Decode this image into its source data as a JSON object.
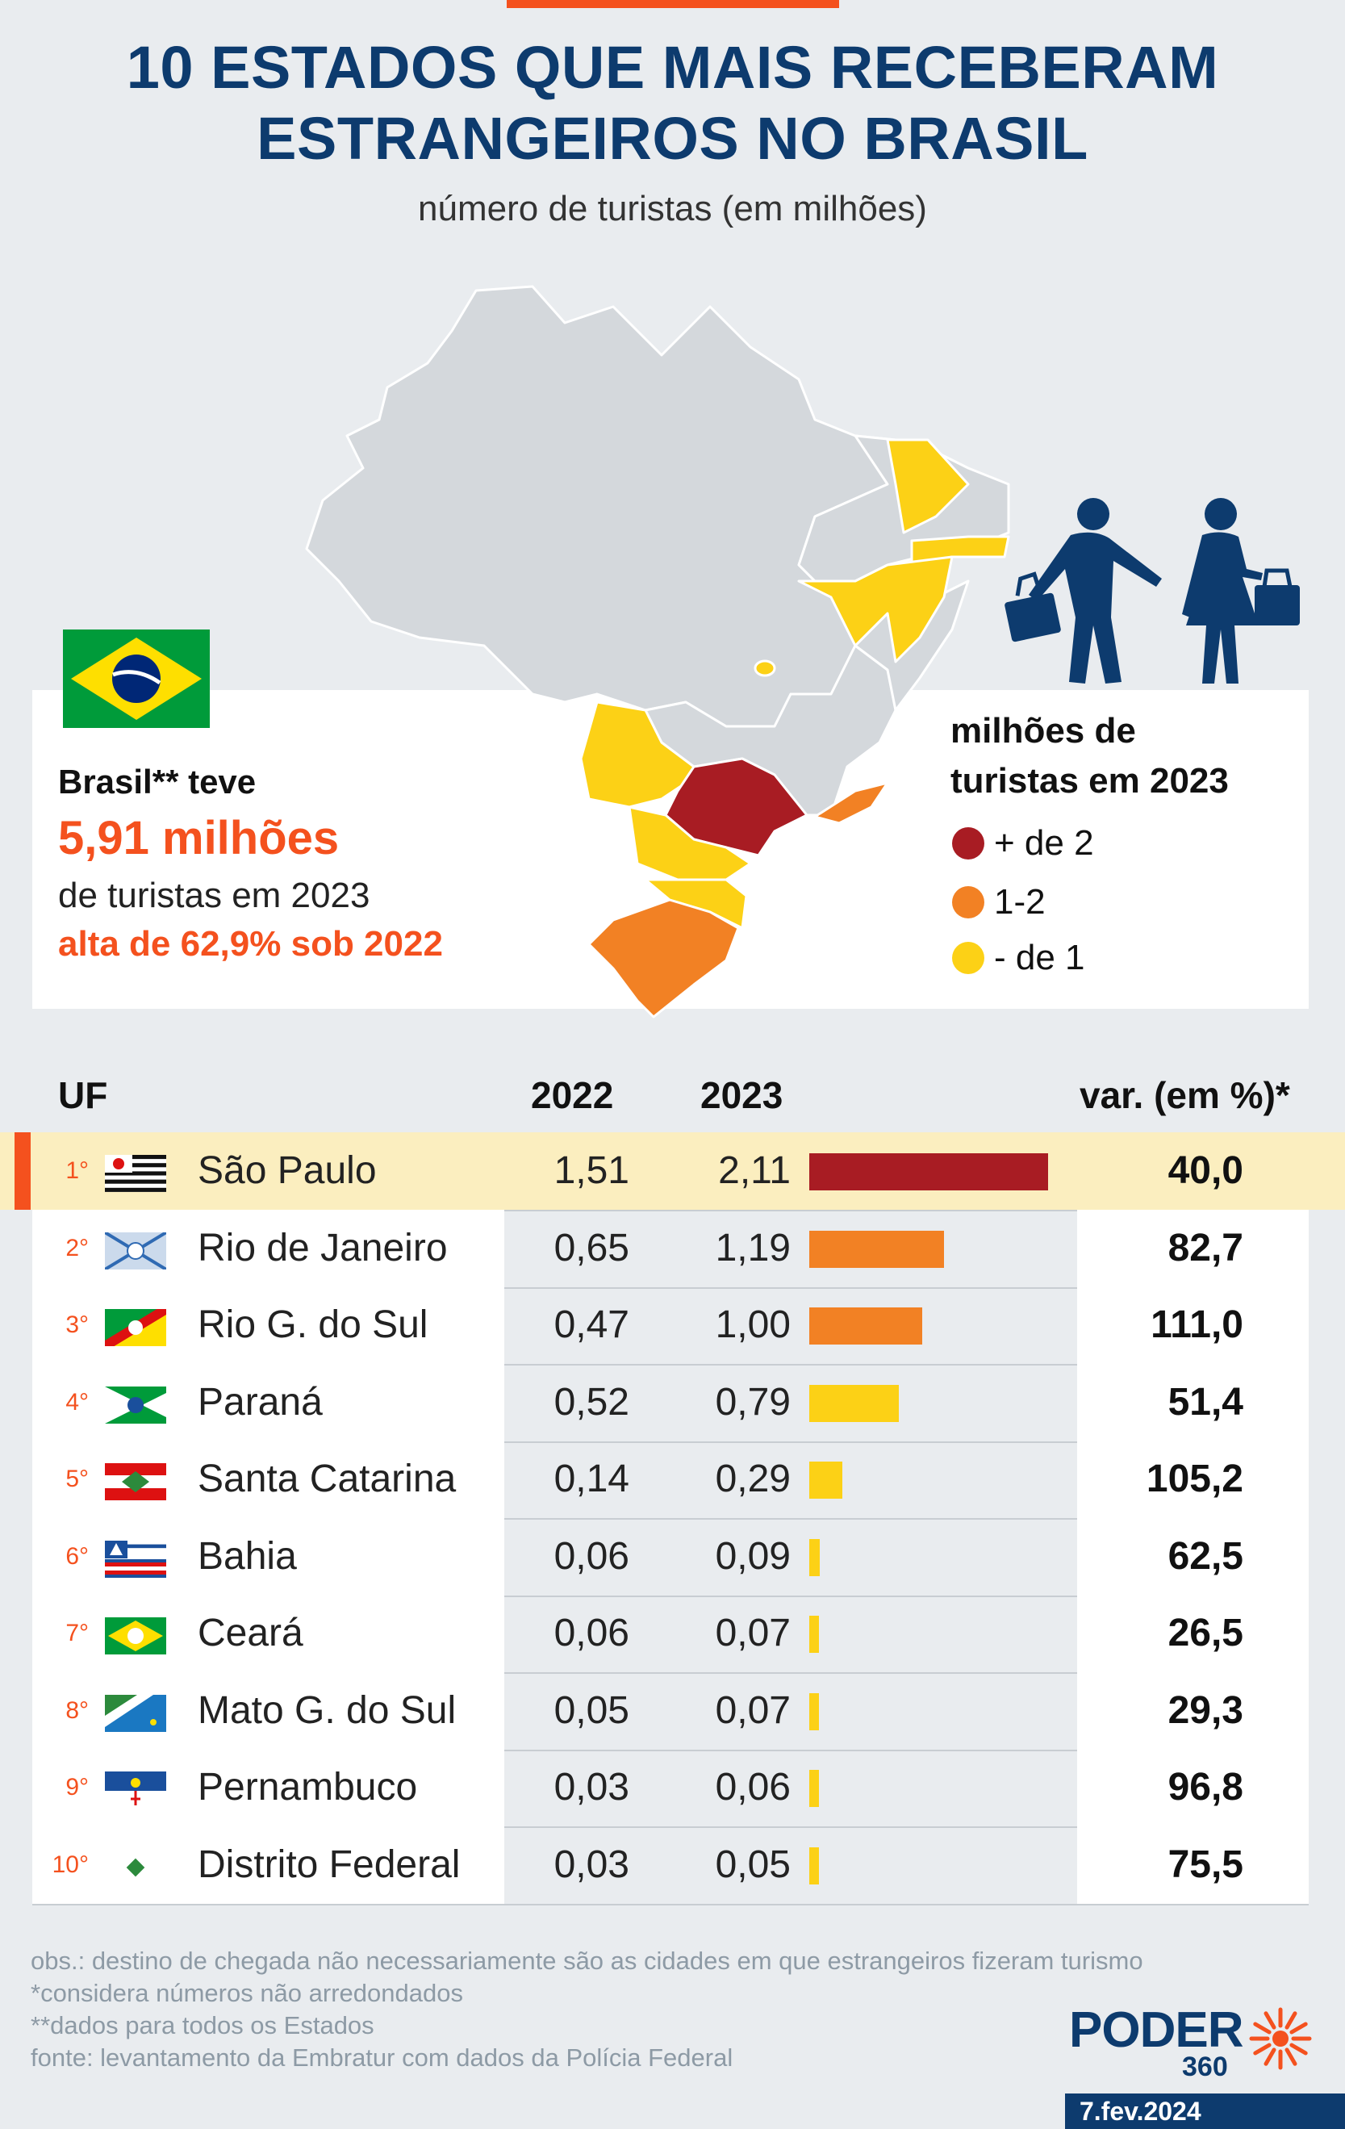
{
  "header": {
    "title_line1": "10 ESTADOS QUE MAIS RECEBERAM",
    "title_line2": "ESTRANGEIROS NO BRASIL",
    "subtitle": "número de turistas (em milhões)"
  },
  "brasil_box": {
    "line1": "Brasil** teve",
    "line2": "5,91 milhões",
    "line3": "de turistas em 2023",
    "line4": "alta de 62,9% sob 2022"
  },
  "legend": {
    "title_line1": "milhões de",
    "title_line2": "turistas em 2023",
    "items": [
      {
        "label": "+ de 2",
        "color": "#a81c23"
      },
      {
        "label": "1-2",
        "color": "#f28124"
      },
      {
        "label": "- de 1",
        "color": "#fcd116"
      }
    ]
  },
  "table": {
    "headers": {
      "uf": "UF",
      "y2022": "2022",
      "y2023": "2023",
      "var": "var. (em %)*"
    },
    "rows": [
      {
        "rank": "1°",
        "state": "São Paulo",
        "v2022": "1,51",
        "v2023": "2,11",
        "var": "40,0"
      },
      {
        "rank": "2°",
        "state": "Rio de Janeiro",
        "v2022": "0,65",
        "v2023": "1,19",
        "var": "82,7"
      },
      {
        "rank": "3°",
        "state": "Rio G. do Sul",
        "v2022": "0,47",
        "v2023": "1,00",
        "var": "111,0"
      },
      {
        "rank": "4°",
        "state": "Paraná",
        "v2022": "0,52",
        "v2023": "0,79",
        "var": "51,4"
      },
      {
        "rank": "5°",
        "state": "Santa Catarina",
        "v2022": "0,14",
        "v2023": "0,29",
        "var": "105,2"
      },
      {
        "rank": "6°",
        "state": "Bahia",
        "v2022": "0,06",
        "v2023": "0,09",
        "var": "62,5"
      },
      {
        "rank": "7°",
        "state": "Ceará",
        "v2022": "0,06",
        "v2023": "0,07",
        "var": "26,5"
      },
      {
        "rank": "8°",
        "state": "Mato G. do Sul",
        "v2022": "0,05",
        "v2023": "0,07",
        "var": "29,3"
      },
      {
        "rank": "9°",
        "state": "Pernambuco",
        "v2022": "0,03",
        "v2023": "0,06",
        "var": "96,8"
      },
      {
        "rank": "10°",
        "state": "Distrito Federal",
        "v2022": "0,03",
        "v2023": "0,05",
        "var": "75,5"
      }
    ]
  },
  "chart_data": {
    "type": "bar",
    "categories": [
      "São Paulo",
      "Rio de Janeiro",
      "Rio G. do Sul",
      "Paraná",
      "Santa Catarina",
      "Bahia",
      "Ceará",
      "Mato G. do Sul",
      "Pernambuco",
      "Distrito Federal"
    ],
    "series": [
      {
        "name": "2022",
        "values": [
          1.51,
          0.65,
          0.47,
          0.52,
          0.14,
          0.06,
          0.06,
          0.05,
          0.03,
          0.03
        ]
      },
      {
        "name": "2023",
        "values": [
          2.11,
          1.19,
          1.0,
          0.79,
          0.29,
          0.09,
          0.07,
          0.07,
          0.06,
          0.05
        ]
      }
    ],
    "variation_pct": [
      40.0,
      82.7,
      111.0,
      51.4,
      105.2,
      62.5,
      26.5,
      29.3,
      96.8,
      75.5
    ],
    "bar_colors": [
      "#a81c23",
      "#f28124",
      "#f28124",
      "#fcd116",
      "#fcd116",
      "#fcd116",
      "#fcd116",
      "#fcd116",
      "#fcd116",
      "#fcd116"
    ],
    "title": "10 ESTADOS QUE MAIS RECEBERAM ESTRANGEIROS NO BRASIL",
    "subtitle": "número de turistas (em milhões)"
  },
  "notes": {
    "obs": "obs.: destino de chegada não necessariamente são as cidades em que estrangeiros fizeram turismo",
    "n1": "*considera números não arredondados",
    "n2": "**dados para todos os Estados",
    "source": "fonte: levantamento da Embratur com dados da Polícia Federal"
  },
  "brand": {
    "name": "PODER",
    "number": "360",
    "date": "7.fev.2024"
  },
  "colors": {
    "navy": "#0d3b6e",
    "accent": "#f4511e",
    "dark_red": "#a81c23",
    "orange": "#f28124",
    "yellow": "#fcd116",
    "map_gray": "#d4d8dc"
  }
}
